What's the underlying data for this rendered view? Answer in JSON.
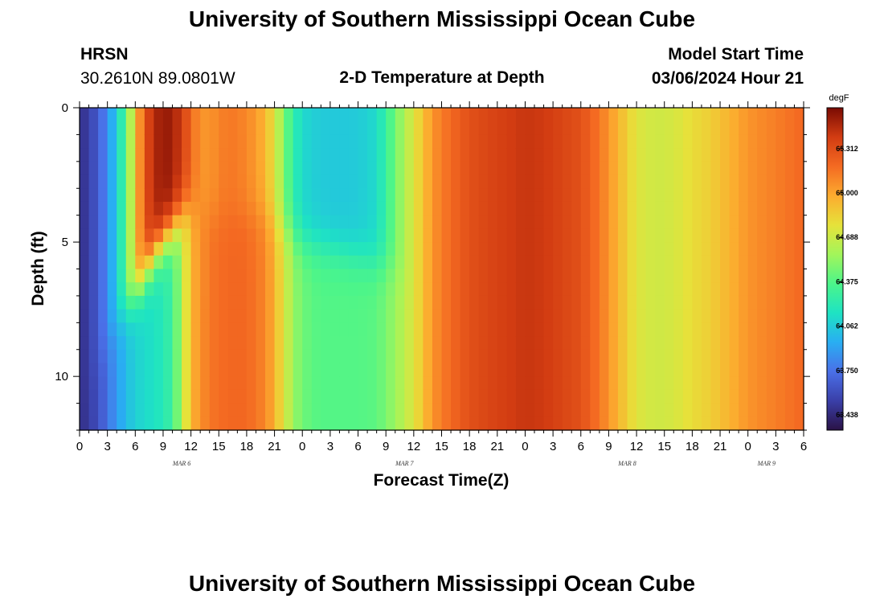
{
  "header": {
    "title": "University of Southern Mississippi Ocean Cube",
    "station": "HRSN",
    "coords": "30.2610N  89.0801W",
    "subtitle": "2-D Temperature at Depth",
    "start_label": "Model Start Time",
    "start_value": "03/06/2024 Hour 21"
  },
  "footer": {
    "title": "University of Southern Mississippi Ocean Cube"
  },
  "chart_data": {
    "type": "heatmap",
    "title": "2-D Temperature at Depth",
    "xlabel": "Forecast Time(Z)",
    "ylabel": "Depth (ft)",
    "x_tick_labels": [
      "0",
      "3",
      "6",
      "9",
      "12",
      "15",
      "18",
      "21",
      "0",
      "3",
      "6",
      "9",
      "12",
      "15",
      "18",
      "21",
      "0",
      "3",
      "6",
      "9",
      "12",
      "15",
      "18",
      "21",
      "0",
      "3",
      "6"
    ],
    "date_labels": [
      {
        "text": "MAR 6",
        "hour_index": 11
      },
      {
        "text": "MAR 7",
        "hour_index": 35
      },
      {
        "text": "MAR 8",
        "hour_index": 59
      },
      {
        "text": "MAR 9",
        "hour_index": 74
      }
    ],
    "x_range_hours": [
      0,
      78
    ],
    "y_ticks": [
      0,
      5,
      10
    ],
    "y_range_ft": [
      0,
      12
    ],
    "colorbar": {
      "unit": "degF",
      "range": [
        63.33,
        65.6
      ],
      "tick_values": [
        63.438,
        63.75,
        64.062,
        64.375,
        64.688,
        65.0,
        65.312
      ],
      "tick_labels": [
        "63.438",
        "63.750",
        "64.062",
        "64.375",
        "64.688",
        "65.000",
        "65.312"
      ],
      "colors": [
        "#2a1246",
        "#3a3fa8",
        "#4a70e8",
        "#29aef2",
        "#1ee3c3",
        "#4cf58a",
        "#a3f55a",
        "#e6e23a",
        "#fcab2f",
        "#f46a22",
        "#d23c12",
        "#7a0b03"
      ]
    },
    "surface_profile": {
      "hours": [
        0,
        2,
        3,
        4,
        5,
        6,
        7,
        8,
        9,
        10,
        11,
        12,
        13,
        14,
        16,
        18,
        20,
        21,
        22,
        23,
        24,
        25,
        26,
        28,
        30,
        32,
        34,
        36,
        37,
        38,
        40,
        42,
        44,
        48,
        50,
        54,
        56,
        58,
        60,
        62,
        64,
        66,
        68,
        70,
        72,
        74,
        76,
        78
      ],
      "temps": [
        63.45,
        63.65,
        63.85,
        64.05,
        64.4,
        64.85,
        65.3,
        65.45,
        65.55,
        65.5,
        65.4,
        65.2,
        65.05,
        65.05,
        65.15,
        65.1,
        64.95,
        64.75,
        64.5,
        64.25,
        64.12,
        64.08,
        64.06,
        64.05,
        64.06,
        64.12,
        64.45,
        64.75,
        64.9,
        65.05,
        65.2,
        65.3,
        65.35,
        65.42,
        65.4,
        65.3,
        65.15,
        64.95,
        64.75,
        64.7,
        64.72,
        64.8,
        64.85,
        64.95,
        65.05,
        65.1,
        65.15,
        65.2
      ]
    },
    "bottom_profile": {
      "hours": [
        0,
        2,
        3,
        4,
        5,
        6,
        7,
        8,
        9,
        10,
        11,
        12,
        14,
        16,
        18,
        20,
        21,
        22,
        23,
        24,
        25,
        26,
        28,
        30,
        32,
        34,
        36,
        37,
        38,
        40,
        42,
        44,
        48,
        50,
        54,
        56,
        58,
        60,
        62,
        64,
        66,
        68,
        70,
        72,
        74,
        76,
        78
      ],
      "temps": [
        63.45,
        63.6,
        63.75,
        63.88,
        64.0,
        64.08,
        64.12,
        64.15,
        64.2,
        64.3,
        64.6,
        64.95,
        65.15,
        65.2,
        65.2,
        65.1,
        64.95,
        64.75,
        64.55,
        64.45,
        64.4,
        64.38,
        64.38,
        64.38,
        64.4,
        64.55,
        64.75,
        64.9,
        65.05,
        65.2,
        65.3,
        65.35,
        65.42,
        65.4,
        65.3,
        65.15,
        64.95,
        64.75,
        64.7,
        64.72,
        64.8,
        64.85,
        64.95,
        65.05,
        65.1,
        65.15,
        65.2
      ]
    },
    "transition": {
      "hours": [
        0,
        4,
        6,
        8,
        10,
        12,
        14,
        20,
        24,
        30,
        34,
        36,
        78
      ],
      "depth_ft": [
        11,
        8,
        7,
        5.5,
        4.5,
        3.5,
        4,
        4,
        5,
        5.5,
        6,
        7,
        7
      ]
    }
  }
}
